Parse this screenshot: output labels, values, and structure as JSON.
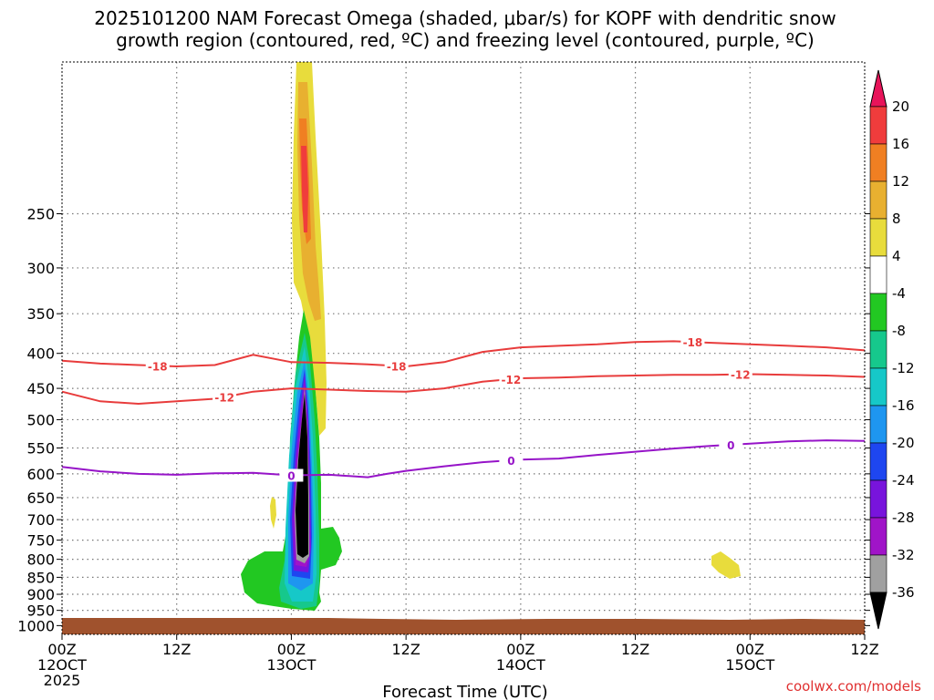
{
  "chart_data": {
    "type": "heatmap",
    "title_line1": "2025101200 NAM Forecast Omega (shaded, μbar/s) for KOPF with dendritic snow",
    "title_line2": "growth region (contoured, red, ºC) and freezing level (contoured, purple, ºC)",
    "xlabel": "Forecast Time (UTC)",
    "ylabel": "",
    "x_range_hours": [
      0,
      84
    ],
    "y_range_hPa": [
      1030,
      150
    ],
    "y_ticks": [
      250,
      300,
      350,
      400,
      450,
      500,
      550,
      600,
      650,
      700,
      750,
      800,
      850,
      900,
      950,
      1000
    ],
    "x_ticks": [
      {
        "hour": 0,
        "line1": "00Z",
        "line2": "12OCT",
        "line3": "2025"
      },
      {
        "hour": 12,
        "line1": "12Z",
        "line2": "",
        "line3": ""
      },
      {
        "hour": 24,
        "line1": "00Z",
        "line2": "13OCT",
        "line3": ""
      },
      {
        "hour": 36,
        "line1": "12Z",
        "line2": "",
        "line3": ""
      },
      {
        "hour": 48,
        "line1": "00Z",
        "line2": "14OCT",
        "line3": ""
      },
      {
        "hour": 60,
        "line1": "12Z",
        "line2": "",
        "line3": ""
      },
      {
        "hour": 72,
        "line1": "00Z",
        "line2": "15OCT",
        "line3": ""
      },
      {
        "hour": 84,
        "line1": "12Z",
        "line2": "",
        "line3": ""
      }
    ],
    "colorbar": {
      "labels": [
        "20",
        "16",
        "12",
        "8",
        "4",
        "-4",
        "-8",
        "-12",
        "-16",
        "-20",
        "-24",
        "-28",
        "-32",
        "-36"
      ],
      "colors": [
        "#e8145a",
        "#f03c3c",
        "#f07f22",
        "#e8b030",
        "#e8dc3c",
        "#ffffff",
        "#22c822",
        "#16c88c",
        "#16c8c8",
        "#1e96f0",
        "#1e46f0",
        "#7814dc",
        "#a014c8",
        "#a0a0a0",
        "#000000"
      ]
    },
    "contours": [
      {
        "name": "dgz-minus18",
        "label": "-18",
        "color": "#e83c3c",
        "hours": [
          0,
          4,
          8,
          12,
          16,
          20,
          24,
          28,
          32,
          36,
          40,
          44,
          48,
          52,
          56,
          60,
          64,
          68,
          72,
          76,
          80,
          84
        ],
        "pressure": [
          410,
          414,
          416,
          418,
          416,
          402,
          412,
          413,
          415,
          418,
          412,
          398,
          392,
          390,
          388,
          385,
          384,
          386,
          388,
          390,
          392,
          396
        ],
        "label_hours": [
          10,
          35,
          66
        ]
      },
      {
        "name": "dgz-minus12",
        "label": "-12",
        "color": "#e83c3c",
        "hours": [
          0,
          4,
          8,
          12,
          16,
          20,
          24,
          28,
          32,
          36,
          40,
          44,
          48,
          52,
          56,
          60,
          64,
          68,
          72,
          76,
          80,
          84
        ],
        "pressure": [
          455,
          470,
          474,
          470,
          466,
          455,
          450,
          452,
          454,
          455,
          450,
          440,
          435,
          434,
          432,
          431,
          430,
          430,
          429,
          430,
          431,
          433
        ],
        "label_hours": [
          17,
          47,
          71
        ]
      },
      {
        "name": "freezing-level",
        "label": "0",
        "color": "#9614c8",
        "hours": [
          0,
          4,
          8,
          12,
          16,
          20,
          24,
          28,
          32,
          34,
          36,
          40,
          44,
          48,
          52,
          56,
          60,
          64,
          68,
          72,
          76,
          80,
          84
        ],
        "pressure": [
          586,
          595,
          600,
          602,
          599,
          598,
          603,
          602,
          607,
          600,
          594,
          585,
          577,
          572,
          570,
          563,
          557,
          551,
          546,
          542,
          538,
          536,
          537
        ],
        "label_hours": [
          24,
          47,
          70
        ]
      }
    ],
    "shaded_features": [
      {
        "name": "upper-ascent-plume",
        "levels": [
          "4",
          "8",
          "12",
          "16"
        ],
        "hour_center": 24.7,
        "pressure_top": 150,
        "pressure_bottom": 480
      },
      {
        "name": "deep-descent-column",
        "levels": [
          "-4",
          "-8",
          "-12",
          "-16",
          "-20",
          "-24",
          "-28",
          "-32",
          "-36"
        ],
        "hour_center": 24.7,
        "pressure_top": 420,
        "pressure_bottom": 930
      },
      {
        "name": "late-weak-ascent",
        "levels": [
          "4"
        ],
        "hour_center": 70.3,
        "pressure_top": 835,
        "pressure_bottom": 880
      }
    ],
    "credit": "coolwx.com/models"
  }
}
